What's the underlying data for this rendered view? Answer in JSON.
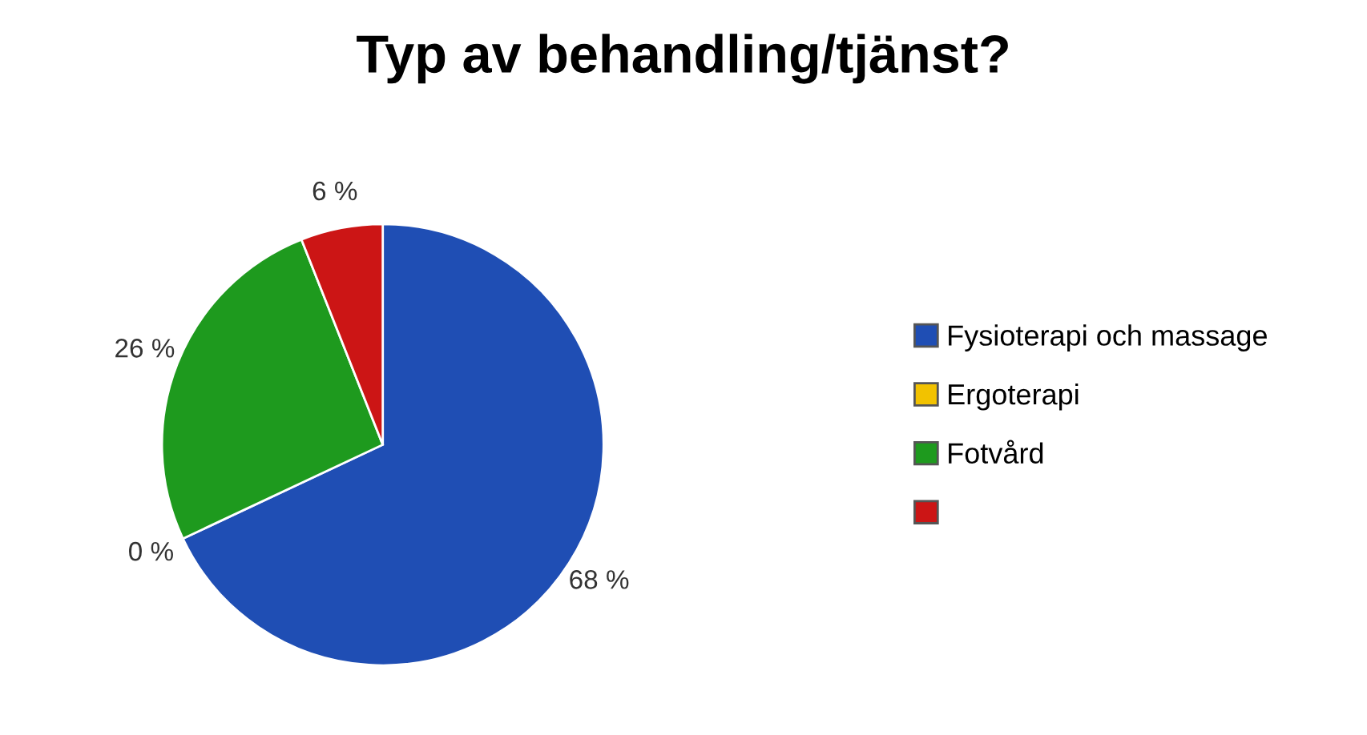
{
  "chart_data": {
    "type": "pie",
    "title": "Typ av behandling/tjänst?",
    "categories": [
      "Fysioterapi och massage",
      "Ergoterapi",
      "Fotvård",
      null
    ],
    "values": [
      68,
      0,
      26,
      6
    ],
    "colors": [
      "#1f4eb4",
      "#f2c200",
      "#1e9a1e",
      "#cc1515"
    ],
    "value_labels": [
      "68 %",
      "0 %",
      "26 %",
      "6 %"
    ],
    "legend": "right"
  }
}
